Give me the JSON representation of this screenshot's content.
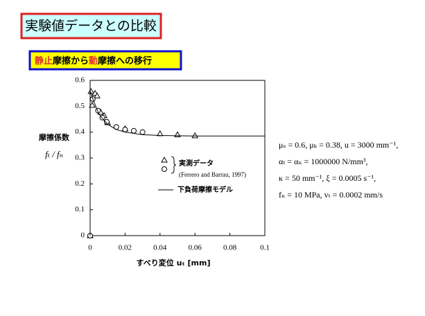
{
  "slide": {
    "title": "実験値データとの比較",
    "subtitle": [
      "静止",
      "摩擦から",
      "動",
      "摩擦への移行"
    ]
  },
  "chart_data": {
    "type": "scatter",
    "ylabel": [
      "摩擦係数",
      "fₜ / fₙ"
    ],
    "xlabel": "すべり変位 uₜ [mm]",
    "xlim": [
      0,
      0.1
    ],
    "xticks": [
      0,
      0.02,
      0.04,
      0.06,
      0.08,
      0.1
    ],
    "ylim": [
      0,
      0.6
    ],
    "yticks": [
      0,
      0.1,
      0.2,
      0.3,
      0.4,
      0.5,
      0.6
    ],
    "legend_note": "(Ferrero and Barrau, 1997)",
    "series": [
      {
        "name": "実測データ",
        "marker": "triangle",
        "color": "#000",
        "x": [
          0,
          0.0005,
          0.0012,
          0.0028,
          0.004,
          0.006,
          0.008,
          0.01,
          0.02,
          0.04,
          0.05,
          0.06
        ],
        "values": [
          0,
          0.557,
          0.504,
          0.55,
          0.54,
          0.477,
          0.464,
          0.437,
          0.413,
          0.394,
          0.39,
          0.386
        ]
      },
      {
        "marker": "circle",
        "color": "#000",
        "x": [
          0,
          0.0015,
          0.0045,
          0.007,
          0.0095,
          0.015,
          0.02,
          0.025,
          0.03
        ],
        "values": [
          0,
          0.528,
          0.483,
          0.456,
          0.44,
          0.42,
          0.41,
          0.405,
          0.4
        ]
      },
      {
        "name": "下負荷摩擦モデル",
        "marker": "line",
        "color": "#000",
        "x": [
          0,
          0,
          0.002,
          0.005,
          0.01,
          0.015,
          0.02,
          0.03,
          0.04,
          0.06,
          0.1
        ],
        "values": [
          0,
          0.56,
          0.52,
          0.47,
          0.43,
          0.41,
          0.4,
          0.39,
          0.387,
          0.385,
          0.385
        ]
      }
    ],
    "parameters": [
      "μₛ = 0.6,  μₖ = 0.38,  u = 3000 mm⁻¹,",
      "αₜ = αₙ = 1000000 N/mm³,",
      "κ = 50  mm⁻¹,  ξ = 0.0005 s⁻¹,",
      "fₙ = 10 MPa,  vₜ = 0.0002 mm/s"
    ]
  }
}
